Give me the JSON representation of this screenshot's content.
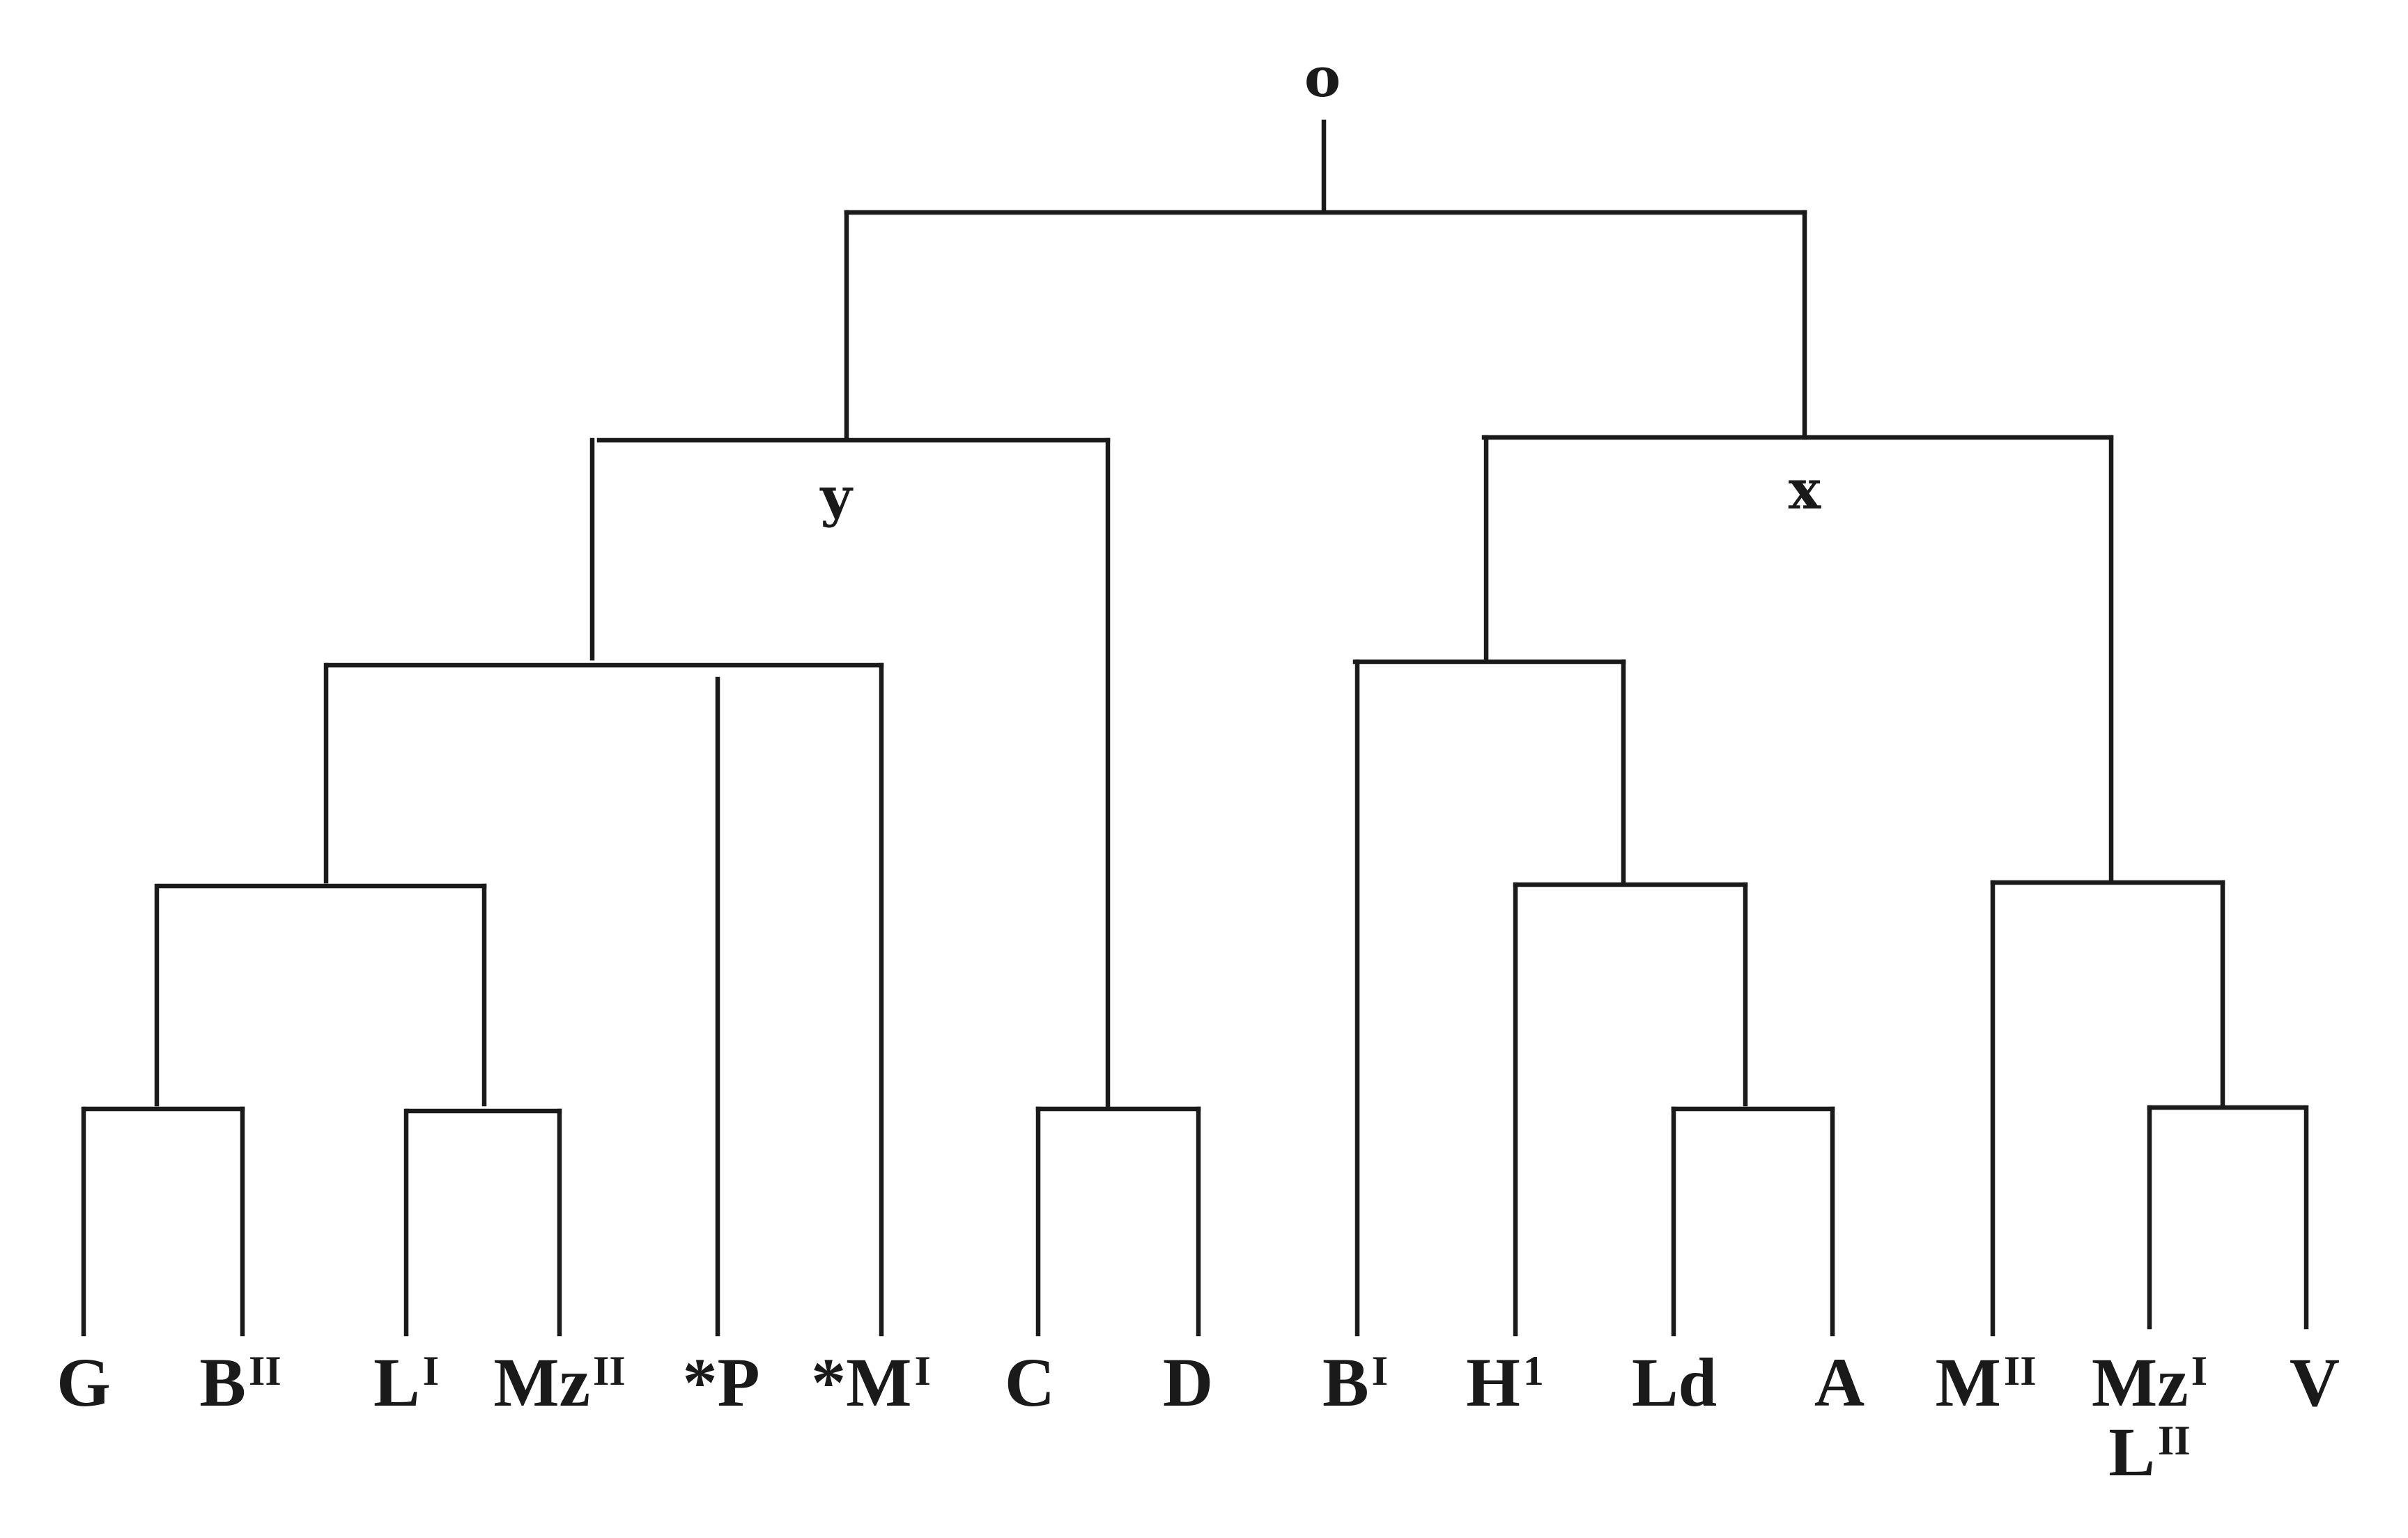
{
  "stemma": {
    "root": {
      "label": "o"
    },
    "branch_y": {
      "label": "y"
    },
    "branch_x": {
      "label": "x"
    },
    "witnesses": [
      {
        "id": "G",
        "base": "G",
        "sup": ""
      },
      {
        "id": "B2",
        "base": "B",
        "sup": "II"
      },
      {
        "id": "L1",
        "base": "L",
        "sup": "I"
      },
      {
        "id": "Mz2",
        "base": "Mz",
        "sup": "II"
      },
      {
        "id": "P",
        "base": "*P",
        "sup": ""
      },
      {
        "id": "M1",
        "base": "*M",
        "sup": "I"
      },
      {
        "id": "C",
        "base": "C",
        "sup": ""
      },
      {
        "id": "D",
        "base": "D",
        "sup": ""
      },
      {
        "id": "B1",
        "base": "B",
        "sup": "I"
      },
      {
        "id": "H1",
        "base": "H",
        "sup": "1"
      },
      {
        "id": "Ld",
        "base": "Ld",
        "sup": ""
      },
      {
        "id": "A",
        "base": "A",
        "sup": ""
      },
      {
        "id": "M2",
        "base": "M",
        "sup": "II"
      },
      {
        "id": "Mz1",
        "base": "Mz",
        "sup": "I"
      },
      {
        "id": "V",
        "base": "V",
        "sup": ""
      }
    ],
    "extra_labels": [
      {
        "id": "L2",
        "base": "L",
        "sup": "II"
      }
    ],
    "colors": {
      "ink": "#1a1a1a",
      "paper": "#ffffff"
    }
  }
}
